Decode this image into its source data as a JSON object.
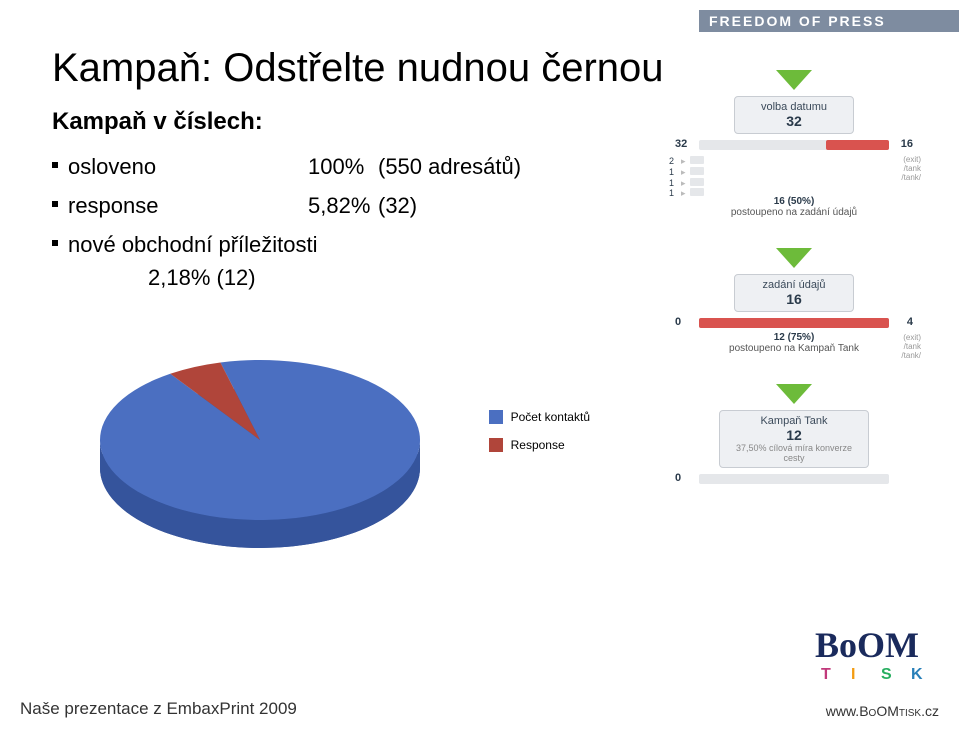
{
  "header": {
    "tagline": "FREEDOM OF PRESS"
  },
  "title": "Kampaň: Odstřelte nudnou černou",
  "subtitle": "Kampaň v číslech:",
  "stats": [
    {
      "label": "osloveno",
      "pct": "100%",
      "count": "(550 adresátů)"
    },
    {
      "label": "response",
      "pct": "5,82%",
      "count": "(32)"
    },
    {
      "label": "nové obchodní příležitosti",
      "pct": "2,18%",
      "count": "(12)",
      "twoLine": true
    }
  ],
  "pie": {
    "type": "pie",
    "series": [
      {
        "name": "Počet kontaktů",
        "value": 550,
        "color": "#4b6fc1"
      },
      {
        "name": "Response",
        "value": 32,
        "color": "#b0453a"
      }
    ],
    "background": "#ffffff",
    "tilt": 0.5,
    "depth": 28,
    "radius_x": 160,
    "radius_y": 80,
    "legend_fontsize": 12
  },
  "funnel": {
    "arrow_color": "#6dbb3a",
    "bar_bg": "#e5e7ea",
    "bar_red": "#d9534f",
    "box_bg": "#eef0f3",
    "box_border": "#c8ccd2",
    "stages": [
      {
        "name": "volba datumu",
        "value": 32,
        "left_num": 32,
        "right_num": 16,
        "right_labels": [
          "(exit)",
          "/tank",
          "/tank/"
        ],
        "mini_left": [
          2,
          1,
          1,
          1
        ],
        "sub_text_bold": "16 (50%)",
        "sub_text": "postoupeno na zadání údajů"
      },
      {
        "name": "zadání údajů",
        "value": 16,
        "left_num": 0,
        "right_num": 4,
        "right_labels": [
          "(exit)",
          "/tank",
          "/tank/"
        ],
        "sub_text_bold": "12 (75%)",
        "sub_text": "postoupeno na Kampaň Tank"
      },
      {
        "name": "Kampaň Tank",
        "value": 12,
        "left_num": 0,
        "final": true,
        "final_text": "37,50% cílová míra konverze cesty"
      }
    ]
  },
  "logo": {
    "main": "BoOM",
    "below": [
      "T",
      "I",
      "S",
      "K"
    ],
    "main_color": "#1a2a5c",
    "sub_colors": [
      "#c1397b",
      "#f39c12",
      "#27ae60",
      "#2980b9"
    ]
  },
  "footer": {
    "left": "Naše prezentace z EmbaxPrint 2009",
    "right_prefix": "www.",
    "right_brand": "BoOMtisk",
    "right_suffix": ".cz"
  }
}
